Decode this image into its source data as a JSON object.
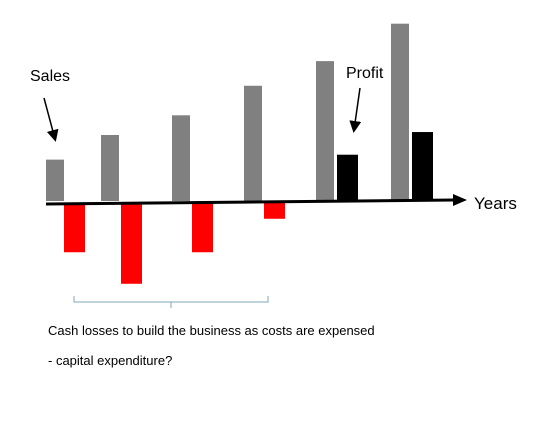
{
  "chart_data": {
    "type": "bar",
    "xlabel": "Years",
    "ylabel": "",
    "title": "",
    "grid": false,
    "legend": "none",
    "ylim": [
      -82,
      180
    ],
    "sales": {
      "label": "Sales",
      "values": [
        42,
        67,
        87,
        117,
        142,
        180
      ],
      "color": "#808080"
    },
    "profit": {
      "label": "Profit",
      "values": [
        -50,
        -82,
        -50,
        -16,
        47,
        70
      ],
      "positive_color": "#000000",
      "negative_color": "#ff0000"
    }
  },
  "annotations": {
    "bracket_color": "#7fa7b8",
    "caption_line1": "Cash losses to build the business as costs are expensed",
    "caption_line2": "- capital expenditure?"
  }
}
